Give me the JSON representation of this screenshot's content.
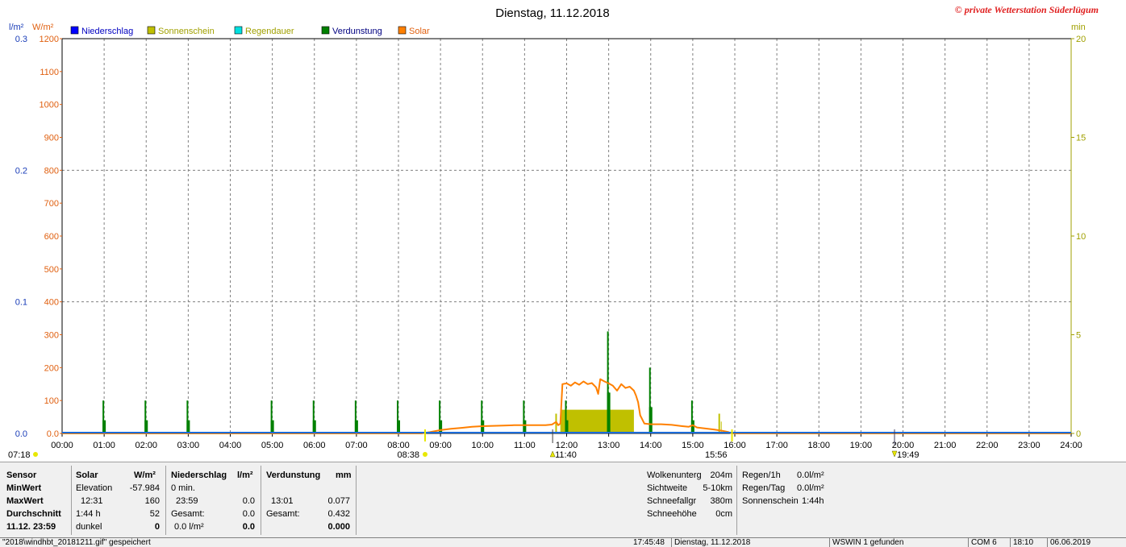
{
  "header": {
    "title": "Dienstag, 11.12.2018",
    "copyright": "© private Wetterstation Süderlügum"
  },
  "chart_data": {
    "type": "line",
    "title": "Dienstag, 11.12.2018",
    "x_ticks": [
      "00:00",
      "01:00",
      "02:00",
      "03:00",
      "04:00",
      "05:00",
      "06:00",
      "07:00",
      "08:00",
      "09:00",
      "10:00",
      "11:00",
      "12:00",
      "13:00",
      "14:00",
      "15:00",
      "16:00",
      "17:00",
      "18:00",
      "19:00",
      "20:00",
      "21:00",
      "22:00",
      "23:00",
      "24:00"
    ],
    "xlim_hours": [
      0,
      24
    ],
    "left_axis_rain": {
      "unit": "l/m²",
      "ylim": [
        0,
        0.3
      ],
      "ticks": [
        "0.0",
        "0.1",
        "0.2",
        "0.3"
      ],
      "color": "#1a3db8"
    },
    "left_axis_solar": {
      "unit": "W/m²",
      "ylim": [
        0,
        1200
      ],
      "ticks": [
        "0.0",
        "100",
        "200",
        "300",
        "400",
        "500",
        "600",
        "700",
        "800",
        "900",
        "1000",
        "1100",
        "1200"
      ],
      "color": "#e06010"
    },
    "right_axis": {
      "unit": "min",
      "ylim": [
        0,
        20
      ],
      "ticks": [
        "0",
        "5",
        "10",
        "15",
        "20"
      ],
      "color": "#a0a000"
    },
    "legend": [
      {
        "name": "Niederschlag",
        "color": "#0000ff",
        "text_color": "#0000c0"
      },
      {
        "name": "Sonnenschein",
        "color": "#c0c000",
        "text_color": "#a0a000"
      },
      {
        "name": "Regendauer",
        "color": "#00e0e0",
        "text_color": "#a0a000"
      },
      {
        "name": "Verdunstung",
        "color": "#008000",
        "text_color": "#000080"
      },
      {
        "name": "Solar",
        "color": "#ff8000",
        "text_color": "#e06010"
      }
    ],
    "legend_position": "top-left",
    "grid": true,
    "series": [
      {
        "name": "Solar",
        "axis": "W/m²",
        "color": "#ff8000",
        "points": [
          [
            0,
            0
          ],
          [
            8.55,
            0
          ],
          [
            8.75,
            4
          ],
          [
            9,
            10
          ],
          [
            9.25,
            14
          ],
          [
            9.5,
            17
          ],
          [
            9.75,
            20
          ],
          [
            10,
            22
          ],
          [
            10.25,
            23
          ],
          [
            10.5,
            24
          ],
          [
            10.75,
            25
          ],
          [
            11,
            25
          ],
          [
            11.5,
            25
          ],
          [
            11.65,
            27
          ],
          [
            11.75,
            35
          ],
          [
            11.8,
            25
          ],
          [
            11.85,
            30
          ],
          [
            11.9,
            150
          ],
          [
            12.0,
            152
          ],
          [
            12.1,
            145
          ],
          [
            12.2,
            155
          ],
          [
            12.3,
            148
          ],
          [
            12.4,
            158
          ],
          [
            12.5,
            150
          ],
          [
            12.6,
            153
          ],
          [
            12.7,
            140
          ],
          [
            12.75,
            120
          ],
          [
            12.8,
            165
          ],
          [
            12.9,
            158
          ],
          [
            13.0,
            152
          ],
          [
            13.1,
            145
          ],
          [
            13.2,
            130
          ],
          [
            13.3,
            150
          ],
          [
            13.4,
            138
          ],
          [
            13.5,
            142
          ],
          [
            13.6,
            130
          ],
          [
            13.65,
            115
          ],
          [
            13.7,
            95
          ],
          [
            13.75,
            55
          ],
          [
            13.85,
            30
          ],
          [
            14,
            28
          ],
          [
            14.25,
            28
          ],
          [
            14.5,
            26
          ],
          [
            14.75,
            22
          ],
          [
            14.9,
            20
          ],
          [
            15.0,
            25
          ],
          [
            15.1,
            18
          ],
          [
            15.3,
            15
          ],
          [
            15.5,
            12
          ],
          [
            15.7,
            8
          ],
          [
            15.85,
            4
          ],
          [
            15.93,
            0
          ],
          [
            24,
            0
          ]
        ]
      },
      {
        "name": "Sonnenschein",
        "axis": "min",
        "color": "#c0c000",
        "points": [
          [
            11.75,
            1.0
          ],
          [
            11.85,
            0.5
          ],
          [
            11.85,
            1.2
          ],
          [
            13.6,
            1.2
          ],
          [
            15.63,
            1.0
          ],
          [
            15.63,
            0.6
          ]
        ]
      },
      {
        "name": "Verdunstung",
        "axis": "W/m²",
        "color": "#008000",
        "points": [
          [
            1,
            100
          ],
          [
            2,
            100
          ],
          [
            3,
            100
          ],
          [
            5,
            100
          ],
          [
            6,
            100
          ],
          [
            7,
            100
          ],
          [
            8,
            100
          ],
          [
            9,
            100
          ],
          [
            10,
            100
          ],
          [
            11,
            100
          ],
          [
            12,
            100
          ],
          [
            13,
            310
          ],
          [
            14,
            200
          ],
          [
            15,
            100
          ]
        ]
      },
      {
        "name": "Niederschlag",
        "axis": "l/m²",
        "color": "#1a6bd8",
        "points": [
          [
            0,
            0
          ],
          [
            24,
            0
          ]
        ]
      }
    ],
    "markers": {
      "day_start": "07:18",
      "sunrise": "08:38",
      "noon": "11:40",
      "sunset": "15:56",
      "moon": "19:49"
    }
  },
  "panel": {
    "sensor_col": {
      "header": "Sensor",
      "min": "MinWert",
      "max": "MaxWert",
      "avg": "Durchschnitt",
      "date": "11.12. 23:59"
    },
    "solar_col": {
      "header": "Solar",
      "unit": "W/m²",
      "r1_label": "Elevation",
      "r1_val": "-57.984",
      "r2_time": "12:31",
      "r2_val": "160",
      "r3_time": "1:44 h",
      "r3_val": "52",
      "r4_label": "dunkel",
      "r4_val": "0"
    },
    "niederschlag_col": {
      "header": "Niederschlag",
      "unit": "l/m²",
      "r1_label": "0 min.",
      "r2_time": "23:59",
      "r2_val": "0.0",
      "r3_label": "Gesamt:",
      "r3_val": "0.0",
      "r4_label": "0.0 l/m²",
      "r4_val": "0.0"
    },
    "verdunstung_col": {
      "header": "Verdunstung",
      "unit": "mm",
      "r2_time": "13:01",
      "r2_val": "0.077",
      "r3_label": "Gesamt:",
      "r3_val": "0.432",
      "r4_val": "0.000"
    },
    "weather_col": {
      "r1_label": "Wolkenunterg",
      "r1_val": "204m",
      "r2_label": "Sichtweite",
      "r2_val": "5-10km",
      "r3_label": "Schneefallgr",
      "r3_val": "380m",
      "r4_label": "Schneehöhe",
      "r4_val": "0cm"
    },
    "rain_col": {
      "r1_label": "Regen/1h",
      "r1_val": "0.0l/m²",
      "r2_label": "Regen/Tag",
      "r2_val": "0.0l/m²",
      "r3_label": "Sonnenschein",
      "r3_val": "1:44h"
    }
  },
  "status_bar": {
    "s1": "\"2018\\windhbt_20181211.gif\" gespeichert",
    "s2": "17:45:48",
    "s3": "Dienstag, 11.12.2018",
    "s4": "WSWIN 1 gefunden",
    "s5": "COM 6",
    "s6": "18:10",
    "s7": "06.06.2019"
  }
}
